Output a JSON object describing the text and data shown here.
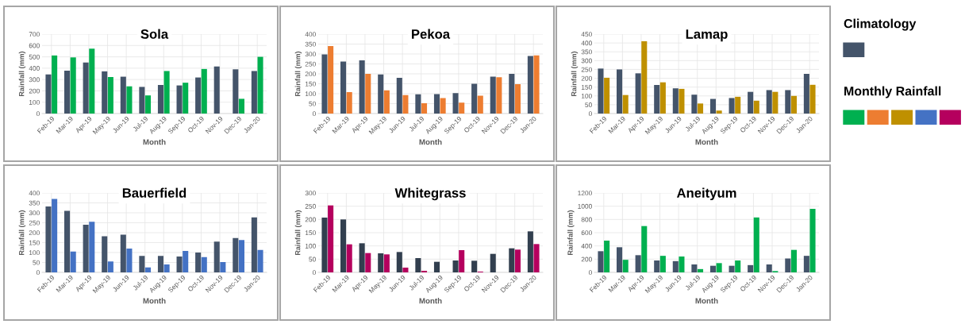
{
  "chart_data": [
    {
      "type": "bar",
      "title": "Sola",
      "xlabel": "Month",
      "ylabel": "Rainfall (mm)",
      "categories": [
        "Feb-19",
        "Mar-19",
        "Apr-19",
        "May-19",
        "Jun-19",
        "Jul-19",
        "Aug-19",
        "Sep-19",
        "Oct-19",
        "Nov-19",
        "Dec-19",
        "Jan-20"
      ],
      "ylim": [
        0,
        700
      ],
      "yticks": [
        0,
        100,
        200,
        300,
        400,
        500,
        600,
        700
      ],
      "grid": true,
      "series": [
        {
          "color": "#44546a",
          "values": [
            345,
            378,
            450,
            372,
            325,
            235,
            252,
            248,
            318,
            415,
            390,
            375
          ]
        },
        {
          "color": "#00b050",
          "values": [
            512,
            495,
            572,
            322,
            240,
            160,
            375,
            272,
            393,
            null,
            130,
            500
          ]
        }
      ]
    },
    {
      "type": "bar",
      "title": "Pekoa",
      "xlabel": "Month",
      "ylabel": "Rainfall (mm)",
      "categories": [
        "Feb-19",
        "Mar-19",
        "Apr-19",
        "May-19",
        "Jun-19",
        "Jul-19",
        "Aug-19",
        "Sep-19",
        "Oct-19",
        "Nov-19",
        "Dec-19",
        "Jan-20"
      ],
      "ylim": [
        0,
        400
      ],
      "yticks": [
        0,
        50,
        100,
        150,
        200,
        250,
        300,
        350,
        400
      ],
      "grid": true,
      "series": [
        {
          "color": "#44546a",
          "values": [
            298,
            262,
            268,
            197,
            180,
            97,
            98,
            103,
            150,
            186,
            200,
            290
          ]
        },
        {
          "color": "#ed7d31",
          "values": [
            340,
            108,
            200,
            117,
            93,
            52,
            78,
            55,
            90,
            183,
            148,
            293
          ]
        }
      ]
    },
    {
      "type": "bar",
      "title": "Lamap",
      "xlabel": "Month",
      "ylabel": "Rainfall (mm)",
      "categories": [
        "Feb-19",
        "Mar-19",
        "Apr-19",
        "May-19",
        "Jun-19",
        "Jul-19",
        "Aug-19",
        "Sep-19",
        "Oct-19",
        "Nov-19",
        "Dec-19",
        "Jan-20"
      ],
      "ylim": [
        0,
        450
      ],
      "yticks": [
        0,
        50,
        100,
        150,
        200,
        250,
        300,
        350,
        400,
        450
      ],
      "grid": true,
      "series": [
        {
          "color": "#44546a",
          "values": [
            255,
            250,
            228,
            162,
            143,
            107,
            83,
            88,
            123,
            133,
            133,
            225
          ]
        },
        {
          "color": "#bf9000",
          "values": [
            203,
            105,
            410,
            177,
            140,
            57,
            17,
            95,
            73,
            123,
            100,
            163
          ]
        }
      ]
    },
    {
      "type": "bar",
      "title": "Bauerfield",
      "xlabel": "Month",
      "ylabel": "Rainfall (mm)",
      "categories": [
        "Feb-19",
        "Mar-19",
        "Apr-19",
        "May-19",
        "Jun-19",
        "Jul-19",
        "Aug-19",
        "Sep-19",
        "Oct-19",
        "Nov-19",
        "Dec-19",
        "Jan-20"
      ],
      "ylim": [
        0,
        400
      ],
      "yticks": [
        0,
        50,
        100,
        150,
        200,
        250,
        300,
        350,
        400
      ],
      "grid": true,
      "series": [
        {
          "color": "#44546a",
          "values": [
            332,
            310,
            240,
            182,
            190,
            83,
            83,
            80,
            100,
            155,
            173,
            277
          ]
        },
        {
          "color": "#4472c4",
          "values": [
            370,
            105,
            255,
            55,
            120,
            25,
            40,
            108,
            77,
            52,
            163,
            113
          ]
        }
      ]
    },
    {
      "type": "bar",
      "title": "Whitegrass",
      "xlabel": "Month",
      "ylabel": "Rainfall (mm)",
      "categories": [
        "Feb-19",
        "Mar-19",
        "Apr-19",
        "May-19",
        "Jun-19",
        "Jul-19",
        "Aug-19",
        "Sep-19",
        "Oct-19",
        "Nov-19",
        "Dec-19",
        "Jan-20"
      ],
      "ylim": [
        0,
        300
      ],
      "yticks": [
        0,
        50,
        100,
        150,
        200,
        250,
        300
      ],
      "grid": true,
      "series": [
        {
          "color": "#323f4f",
          "values": [
            207,
            200,
            110,
            72,
            77,
            54,
            40,
            45,
            44,
            70,
            91,
            155
          ]
        },
        {
          "color": "#b5005e",
          "values": [
            253,
            106,
            73,
            68,
            18,
            6,
            null,
            84,
            3,
            null,
            86,
            107
          ]
        }
      ]
    },
    {
      "type": "bar",
      "title": "Aneityum",
      "xlabel": "Month",
      "ylabel": "Rainfall (mm)",
      "categories": [
        "Feb-19",
        "Mar-19",
        "Apr-19",
        "May-19",
        "Jun-19",
        "Jul-19",
        "Aug-19",
        "Sep-19",
        "Oct-19",
        "Nov-19",
        "Dec-19",
        "Jan-20"
      ],
      "ylim": [
        0,
        1200
      ],
      "yticks": [
        0,
        200,
        400,
        600,
        800,
        1000,
        1200
      ],
      "grid": true,
      "series": [
        {
          "color": "#44546a",
          "values": [
            320,
            380,
            260,
            180,
            170,
            120,
            100,
            100,
            110,
            120,
            210,
            250
          ]
        },
        {
          "color": "#00b050",
          "values": [
            480,
            190,
            700,
            250,
            240,
            50,
            140,
            180,
            830,
            20,
            340,
            960
          ]
        }
      ]
    },
    {
      "type": "other",
      "annotations": [
        "Climatology",
        "Monthly Rainfall"
      ]
    }
  ]
}
